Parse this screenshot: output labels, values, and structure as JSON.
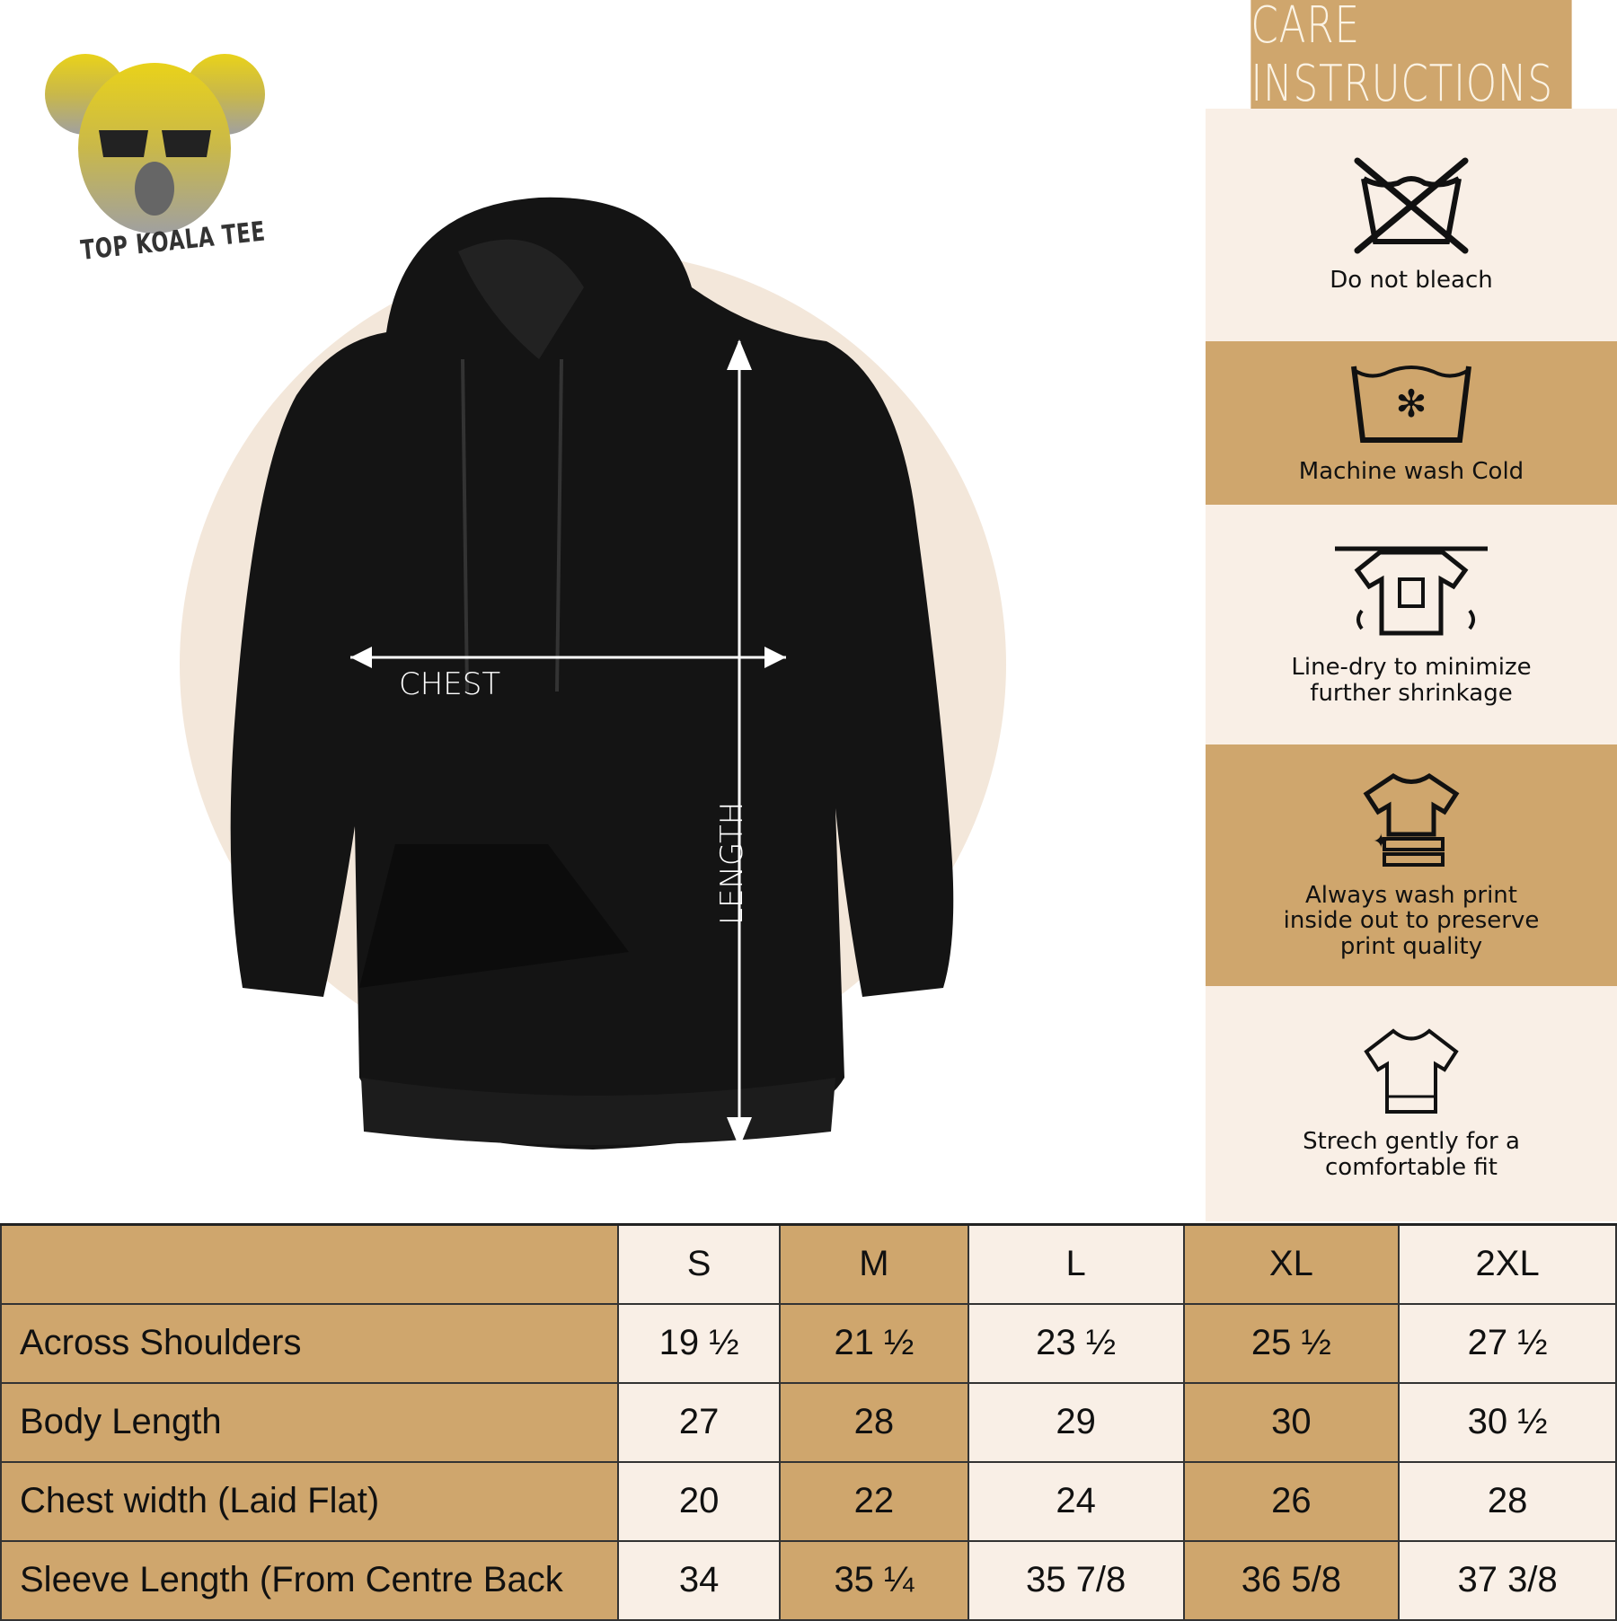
{
  "brand": {
    "name": "TOP KOALA TEE"
  },
  "diagram": {
    "chest_label": "CHEST",
    "length_label": "LENGTH"
  },
  "care": {
    "title": "CARE INSTRUCTIONS",
    "items": [
      {
        "icon": "no-bleach-icon",
        "label": "Do not bleach"
      },
      {
        "icon": "wash-cold-icon",
        "label": "Machine wash Cold"
      },
      {
        "icon": "line-dry-icon",
        "label": "Line-dry to minimize further shrinkage"
      },
      {
        "icon": "inside-out-icon",
        "label": "Always wash print inside out to preserve print quality"
      },
      {
        "icon": "stretch-icon",
        "label": "Strech gently for a comfortable fit"
      }
    ]
  },
  "size_table": {
    "headers": [
      "",
      "S",
      "M",
      "L",
      "XL",
      "2XL"
    ],
    "rows": [
      {
        "label": "Across Shoulders",
        "values": [
          "19 ½",
          "21 ½",
          "23 ½",
          "25 ½",
          "27 ½"
        ]
      },
      {
        "label": "Body Length",
        "values": [
          "27",
          "28",
          "29",
          "30",
          "30 ½"
        ]
      },
      {
        "label": "Chest width (Laid Flat)",
        "values": [
          "20",
          "22",
          "24",
          "26",
          "28"
        ]
      },
      {
        "label": "Sleeve Length (From Centre Back",
        "values": [
          "34",
          "35 ¼",
          "35 7/8",
          "36 5/8",
          "37 3/8"
        ]
      }
    ]
  },
  "colors": {
    "tan": "#cfa66d",
    "cream": "#f9efe6",
    "hoodie": "#111111"
  }
}
